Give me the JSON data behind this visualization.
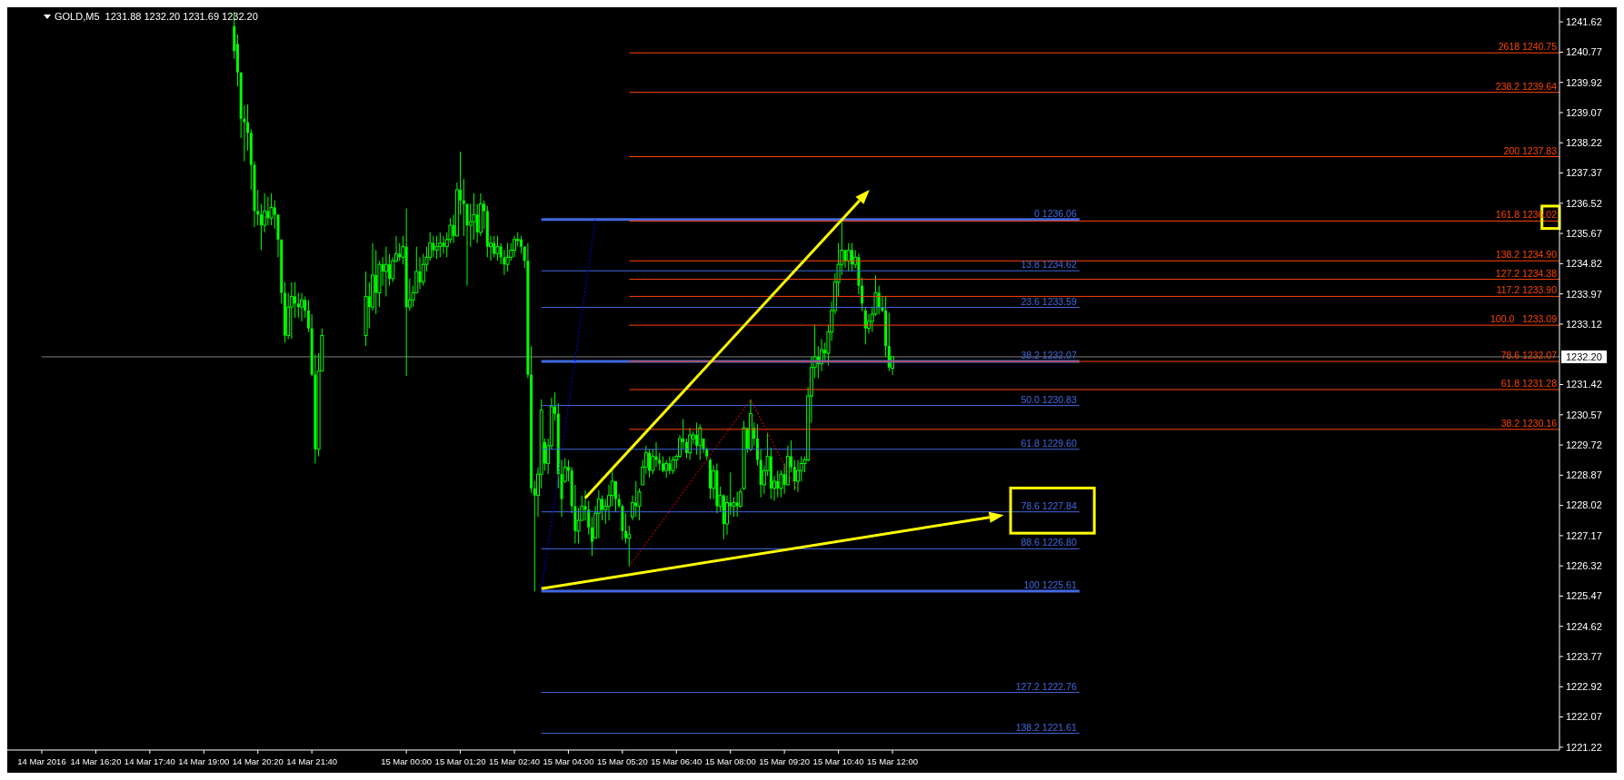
{
  "chart_data": {
    "type": "candlestick",
    "title": "GOLD,M5  1231.88 1232.20 1231.69 1232.20",
    "color": "#00ff00",
    "xlim": [
      "2016-03-14T15:00",
      "2016-03-16T04:28"
    ],
    "ylim": [
      1221.14,
      1241.93
    ],
    "xticks": [
      {
        "value": "2016-03-14T15:00",
        "label": "14 Mar 2016"
      },
      {
        "value": "2016-03-14T16:20",
        "label": "14 Mar 16:20"
      },
      {
        "value": "2016-03-14T17:40",
        "label": "14 Mar 17:40"
      },
      {
        "value": "2016-03-14T19:00",
        "label": "14 Mar 19:00"
      },
      {
        "value": "2016-03-14T20:20",
        "label": "14 Mar 20:20"
      },
      {
        "value": "2016-03-14T21:40",
        "label": "14 Mar 21:40"
      },
      {
        "value": "2016-03-15T00:00",
        "label": "15 Mar 00:00"
      },
      {
        "value": "2016-03-15T01:20",
        "label": "15 Mar 01:20"
      },
      {
        "value": "2016-03-15T02:40",
        "label": "15 Mar 02:40"
      },
      {
        "value": "2016-03-15T04:00",
        "label": "15 Mar 04:00"
      },
      {
        "value": "2016-03-15T05:20",
        "label": "15 Mar 05:20"
      },
      {
        "value": "2016-03-15T06:40",
        "label": "15 Mar 06:40"
      },
      {
        "value": "2016-03-15T08:00",
        "label": "15 Mar 08:00"
      },
      {
        "value": "2016-03-15T09:20",
        "label": "15 Mar 09:20"
      },
      {
        "value": "2016-03-15T10:40",
        "label": "15 Mar 10:40"
      },
      {
        "value": "2016-03-15T12:00",
        "label": "15 Mar 12:00"
      }
    ],
    "yticks": [
      1241.62,
      1240.77,
      1239.92,
      1239.07,
      1238.22,
      1237.37,
      1236.52,
      1235.67,
      1234.82,
      1233.97,
      1233.12,
      1231.42,
      1230.57,
      1229.72,
      1228.87,
      1228.02,
      1227.17,
      1226.32,
      1225.47,
      1224.62,
      1223.77,
      1222.92,
      1222.07,
      1221.22
    ],
    "ref_lines": [
      {
        "axis": "y",
        "value": 1232.2,
        "label": "1232.20",
        "color": "#808080"
      }
    ],
    "x": [
      "2016-03-14T19:45",
      "2016-03-14T19:50",
      "2016-03-14T19:55",
      "2016-03-14T20:00",
      "2016-03-14T20:05",
      "2016-03-14T20:10",
      "2016-03-14T20:15",
      "2016-03-14T20:20",
      "2016-03-14T20:25",
      "2016-03-14T20:30",
      "2016-03-14T20:35",
      "2016-03-14T20:40",
      "2016-03-14T20:45",
      "2016-03-14T20:50",
      "2016-03-14T20:55",
      "2016-03-14T21:00",
      "2016-03-14T21:05",
      "2016-03-14T21:10",
      "2016-03-14T21:15",
      "2016-03-14T21:20",
      "2016-03-14T21:25",
      "2016-03-14T21:30",
      "2016-03-14T21:35",
      "2016-03-14T21:40",
      "2016-03-14T21:45",
      "2016-03-14T21:50",
      "2016-03-14T21:55",
      "2016-03-14T23:00",
      "2016-03-14T23:05",
      "2016-03-14T23:10",
      "2016-03-14T23:15",
      "2016-03-14T23:20",
      "2016-03-14T23:25",
      "2016-03-14T23:30",
      "2016-03-14T23:35",
      "2016-03-14T23:40",
      "2016-03-14T23:45",
      "2016-03-14T23:50",
      "2016-03-14T23:55",
      "2016-03-15T00:00",
      "2016-03-15T00:05",
      "2016-03-15T00:10",
      "2016-03-15T00:15",
      "2016-03-15T00:20",
      "2016-03-15T00:25",
      "2016-03-15T00:30",
      "2016-03-15T00:35",
      "2016-03-15T00:40",
      "2016-03-15T00:45",
      "2016-03-15T00:50",
      "2016-03-15T00:55",
      "2016-03-15T01:00",
      "2016-03-15T01:05",
      "2016-03-15T01:10",
      "2016-03-15T01:15",
      "2016-03-15T01:20",
      "2016-03-15T01:25",
      "2016-03-15T01:30",
      "2016-03-15T01:35",
      "2016-03-15T01:40",
      "2016-03-15T01:45",
      "2016-03-15T01:50",
      "2016-03-15T01:55",
      "2016-03-15T02:00",
      "2016-03-15T02:05",
      "2016-03-15T02:10",
      "2016-03-15T02:15",
      "2016-03-15T02:20",
      "2016-03-15T02:25",
      "2016-03-15T02:30",
      "2016-03-15T02:35",
      "2016-03-15T02:40",
      "2016-03-15T02:45",
      "2016-03-15T02:50",
      "2016-03-15T02:55",
      "2016-03-15T03:00",
      "2016-03-15T03:05",
      "2016-03-15T03:10",
      "2016-03-15T03:15",
      "2016-03-15T03:20",
      "2016-03-15T03:25",
      "2016-03-15T03:30",
      "2016-03-15T03:35",
      "2016-03-15T03:40",
      "2016-03-15T03:45",
      "2016-03-15T03:50",
      "2016-03-15T03:55",
      "2016-03-15T04:00",
      "2016-03-15T04:05",
      "2016-03-15T04:10",
      "2016-03-15T04:15",
      "2016-03-15T04:20",
      "2016-03-15T04:25",
      "2016-03-15T04:30",
      "2016-03-15T04:35",
      "2016-03-15T04:40",
      "2016-03-15T04:45",
      "2016-03-15T04:50",
      "2016-03-15T04:55",
      "2016-03-15T05:00",
      "2016-03-15T05:05",
      "2016-03-15T05:10",
      "2016-03-15T05:15",
      "2016-03-15T05:20",
      "2016-03-15T05:25",
      "2016-03-15T05:30",
      "2016-03-15T05:35",
      "2016-03-15T05:40",
      "2016-03-15T05:45",
      "2016-03-15T05:50",
      "2016-03-15T05:55",
      "2016-03-15T06:00",
      "2016-03-15T06:05",
      "2016-03-15T06:10",
      "2016-03-15T06:15",
      "2016-03-15T06:20",
      "2016-03-15T06:25",
      "2016-03-15T06:30",
      "2016-03-15T06:35",
      "2016-03-15T06:40",
      "2016-03-15T06:45",
      "2016-03-15T06:50",
      "2016-03-15T06:55",
      "2016-03-15T07:00",
      "2016-03-15T07:05",
      "2016-03-15T07:10",
      "2016-03-15T07:15",
      "2016-03-15T07:20",
      "2016-03-15T07:25",
      "2016-03-15T07:30",
      "2016-03-15T07:35",
      "2016-03-15T07:40",
      "2016-03-15T07:45",
      "2016-03-15T07:50",
      "2016-03-15T07:55",
      "2016-03-15T08:00",
      "2016-03-15T08:05",
      "2016-03-15T08:10",
      "2016-03-15T08:15",
      "2016-03-15T08:20",
      "2016-03-15T08:25",
      "2016-03-15T08:30",
      "2016-03-15T08:35",
      "2016-03-15T08:40",
      "2016-03-15T08:45",
      "2016-03-15T08:50",
      "2016-03-15T08:55",
      "2016-03-15T09:00",
      "2016-03-15T09:05",
      "2016-03-15T09:10",
      "2016-03-15T09:15",
      "2016-03-15T09:20",
      "2016-03-15T09:25",
      "2016-03-15T09:30",
      "2016-03-15T09:35",
      "2016-03-15T09:40",
      "2016-03-15T09:45",
      "2016-03-15T09:50",
      "2016-03-15T09:55",
      "2016-03-15T10:00",
      "2016-03-15T10:05",
      "2016-03-15T10:10",
      "2016-03-15T10:15",
      "2016-03-15T10:20",
      "2016-03-15T10:25",
      "2016-03-15T10:30",
      "2016-03-15T10:35",
      "2016-03-15T10:40",
      "2016-03-15T10:45",
      "2016-03-15T10:50",
      "2016-03-15T10:55",
      "2016-03-15T11:00",
      "2016-03-15T11:05",
      "2016-03-15T11:10",
      "2016-03-15T11:15",
      "2016-03-15T11:20",
      "2016-03-15T11:25",
      "2016-03-15T11:30",
      "2016-03-15T11:35",
      "2016-03-15T11:40",
      "2016-03-15T11:45",
      "2016-03-15T11:50",
      "2016-03-15T11:55",
      "2016-03-15T12:00"
    ],
    "ohlc": [
      [
        1241.5,
        1241.9,
        1240.58,
        1240.8
      ],
      [
        1241.0,
        1241.27,
        1239.8,
        1240.2
      ],
      [
        1240.2,
        1240.2,
        1238.35,
        1238.9
      ],
      [
        1238.9,
        1239.27,
        1237.7,
        1238.8
      ],
      [
        1238.8,
        1239.3,
        1238.0,
        1238.5
      ],
      [
        1238.5,
        1238.6,
        1236.9,
        1237.6
      ],
      [
        1237.6,
        1237.7,
        1235.85,
        1236.3
      ],
      [
        1236.3,
        1236.9,
        1235.9,
        1236.2
      ],
      [
        1236.2,
        1236.5,
        1235.2,
        1235.9
      ],
      [
        1235.9,
        1236.8,
        1235.7,
        1236.3
      ],
      [
        1236.3,
        1236.7,
        1235.9,
        1236.1
      ],
      [
        1236.1,
        1236.8,
        1235.9,
        1236.4
      ],
      [
        1236.4,
        1236.6,
        1235.8,
        1236.2
      ],
      [
        1236.2,
        1236.2,
        1235.0,
        1235.5
      ],
      [
        1235.5,
        1235.5,
        1233.7,
        1234.0
      ],
      [
        1234.0,
        1234.3,
        1232.6,
        1232.8
      ],
      [
        1232.8,
        1234.0,
        1232.7,
        1233.6
      ],
      [
        1233.6,
        1234.3,
        1232.7,
        1233.9
      ],
      [
        1233.9,
        1234.3,
        1233.3,
        1233.7
      ],
      [
        1233.7,
        1234.0,
        1233.3,
        1233.6
      ],
      [
        1233.6,
        1234.0,
        1233.2,
        1233.8
      ],
      [
        1233.8,
        1233.9,
        1233.3,
        1233.5
      ],
      [
        1233.5,
        1233.8,
        1232.9,
        1233.0
      ],
      [
        1233.0,
        1233.4,
        1231.65,
        1231.7
      ],
      [
        1231.7,
        1232.26,
        1229.2,
        1229.6
      ],
      [
        1229.6,
        1232.3,
        1229.4,
        1231.8
      ],
      [
        1231.8,
        1233.0,
        1231.8,
        1232.8
      ],
      [
        1232.8,
        1234.6,
        1232.5,
        1233.9
      ],
      [
        1233.9,
        1234.3,
        1233.0,
        1233.6
      ],
      [
        1233.6,
        1235.4,
        1233.5,
        1234.5
      ],
      [
        1234.5,
        1235.2,
        1233.4,
        1234.0
      ],
      [
        1234.0,
        1234.9,
        1233.6,
        1234.8
      ],
      [
        1234.8,
        1235.0,
        1234.2,
        1234.6
      ],
      [
        1234.6,
        1235.3,
        1233.9,
        1234.8
      ],
      [
        1234.8,
        1235.1,
        1234.2,
        1234.4
      ],
      [
        1234.4,
        1235.0,
        1234.3,
        1234.9
      ],
      [
        1234.9,
        1235.6,
        1234.85,
        1235.1
      ],
      [
        1235.1,
        1235.4,
        1234.9,
        1235.0
      ],
      [
        1235.0,
        1235.6,
        1234.8,
        1235.3
      ],
      [
        1235.3,
        1236.37,
        1231.66,
        1233.6
      ],
      [
        1233.6,
        1234.4,
        1233.5,
        1233.8
      ],
      [
        1233.8,
        1234.2,
        1233.6,
        1234.0
      ],
      [
        1234.0,
        1235.3,
        1234.0,
        1234.6
      ],
      [
        1234.6,
        1235.0,
        1234.1,
        1234.3
      ],
      [
        1234.3,
        1235.1,
        1234.2,
        1234.8
      ],
      [
        1234.8,
        1235.3,
        1234.6,
        1235.0
      ],
      [
        1235.0,
        1235.7,
        1234.9,
        1235.4
      ],
      [
        1235.4,
        1235.6,
        1235.0,
        1235.2
      ],
      [
        1235.2,
        1235.6,
        1234.95,
        1235.3
      ],
      [
        1235.3,
        1235.7,
        1235.0,
        1235.4
      ],
      [
        1235.4,
        1235.6,
        1235.1,
        1235.3
      ],
      [
        1235.3,
        1235.7,
        1235.0,
        1235.5
      ],
      [
        1235.5,
        1236.1,
        1235.4,
        1235.9
      ],
      [
        1235.9,
        1236.2,
        1235.4,
        1235.6
      ],
      [
        1235.6,
        1237.1,
        1235.6,
        1236.9
      ],
      [
        1236.9,
        1237.97,
        1236.2,
        1236.6
      ],
      [
        1236.6,
        1237.2,
        1235.6,
        1236.5
      ],
      [
        1236.5,
        1236.5,
        1234.2,
        1235.9
      ],
      [
        1235.9,
        1236.5,
        1235.3,
        1236.0
      ],
      [
        1236.0,
        1236.8,
        1235.5,
        1236.2
      ],
      [
        1236.2,
        1236.5,
        1235.4,
        1235.7
      ],
      [
        1235.7,
        1236.8,
        1235.6,
        1236.5
      ],
      [
        1236.5,
        1236.6,
        1235.8,
        1236.3
      ],
      [
        1236.3,
        1236.45,
        1235.0,
        1235.3
      ],
      [
        1235.3,
        1235.6,
        1234.9,
        1235.4
      ],
      [
        1235.4,
        1235.6,
        1235.0,
        1235.1
      ],
      [
        1235.1,
        1235.6,
        1234.9,
        1235.3
      ],
      [
        1235.3,
        1235.4,
        1234.8,
        1235.0
      ],
      [
        1235.0,
        1235.2,
        1234.5,
        1234.8
      ],
      [
        1234.8,
        1235.4,
        1234.6,
        1235.0
      ],
      [
        1235.0,
        1235.4,
        1234.9,
        1235.2
      ],
      [
        1235.2,
        1235.6,
        1235.0,
        1235.5
      ],
      [
        1235.5,
        1235.7,
        1235.3,
        1235.5
      ],
      [
        1235.5,
        1235.6,
        1235.1,
        1235.3
      ],
      [
        1235.3,
        1235.3,
        1234.7,
        1234.9
      ],
      [
        1234.9,
        1235.4,
        1231.6,
        1231.7
      ],
      [
        1231.7,
        1232.5,
        1228.37,
        1228.5
      ],
      [
        1228.5,
        1228.7,
        1225.6,
        1228.3
      ],
      [
        1228.3,
        1229.09,
        1227.7,
        1228.9
      ],
      [
        1228.9,
        1231.0,
        1228.5,
        1230.7
      ],
      [
        1229.8,
        1229.9,
        1229.0,
        1229.2
      ],
      [
        1229.2,
        1229.9,
        1228.9,
        1229.7
      ],
      [
        1229.7,
        1231.05,
        1229.6,
        1230.8
      ],
      [
        1230.8,
        1231.2,
        1230.4,
        1230.6
      ],
      [
        1230.6,
        1230.9,
        1228.5,
        1228.9
      ],
      [
        1228.9,
        1229.3,
        1227.7,
        1228.2
      ],
      [
        1228.7,
        1229.35,
        1228.65,
        1229.1
      ],
      [
        1229.1,
        1229.3,
        1228.7,
        1229.0
      ],
      [
        1229.0,
        1229.1,
        1227.8,
        1228.0
      ],
      [
        1228.0,
        1228.6,
        1226.95,
        1227.3
      ],
      [
        1227.3,
        1227.95,
        1226.95,
        1227.6
      ],
      [
        1227.6,
        1228.3,
        1227.6,
        1228.0
      ],
      [
        1228.0,
        1228.45,
        1227.6,
        1227.9
      ],
      [
        1227.9,
        1228.15,
        1227.2,
        1227.4
      ],
      [
        1227.4,
        1227.7,
        1226.6,
        1227.0
      ],
      [
        1227.1,
        1228.0,
        1227.1,
        1227.8
      ],
      [
        1227.8,
        1228.45,
        1227.1,
        1228.2
      ],
      [
        1228.2,
        1228.3,
        1227.6,
        1227.9
      ],
      [
        1227.9,
        1228.2,
        1227.5,
        1228.0
      ],
      [
        1228.0,
        1228.6,
        1227.6,
        1228.3
      ],
      [
        1228.3,
        1229.0,
        1228.0,
        1228.7
      ],
      [
        1228.7,
        1228.7,
        1227.85,
        1228.2
      ],
      [
        1228.2,
        1228.35,
        1227.95,
        1228.0
      ],
      [
        1228.0,
        1228.05,
        1227.05,
        1227.3
      ],
      [
        1227.3,
        1227.8,
        1226.95,
        1227.1
      ],
      [
        1227.1,
        1227.45,
        1226.3,
        1227.2
      ],
      [
        1227.7,
        1228.3,
        1227.6,
        1228.1
      ],
      [
        1228.1,
        1228.7,
        1227.7,
        1228.0
      ],
      [
        1228.0,
        1228.5,
        1227.6,
        1228.4
      ],
      [
        1228.6,
        1229.3,
        1228.6,
        1229.1
      ],
      [
        1229.1,
        1229.7,
        1228.9,
        1229.5
      ],
      [
        1229.5,
        1229.6,
        1228.8,
        1229.0
      ],
      [
        1229.0,
        1229.6,
        1228.9,
        1229.4
      ],
      [
        1229.4,
        1229.8,
        1229.1,
        1229.3
      ],
      [
        1229.3,
        1229.5,
        1229.0,
        1229.2
      ],
      [
        1229.2,
        1229.4,
        1228.95,
        1229.0
      ],
      [
        1229.0,
        1229.3,
        1228.8,
        1229.2
      ],
      [
        1229.2,
        1229.4,
        1228.9,
        1229.0
      ],
      [
        1229.0,
        1229.4,
        1228.9,
        1229.3
      ],
      [
        1229.3,
        1229.45,
        1229.05,
        1229.4
      ],
      [
        1229.4,
        1230.0,
        1229.35,
        1229.9
      ],
      [
        1229.9,
        1230.45,
        1229.6,
        1229.8
      ],
      [
        1229.8,
        1229.9,
        1229.35,
        1229.5
      ],
      [
        1229.5,
        1230.2,
        1229.3,
        1230.0
      ],
      [
        1229.9,
        1230.1,
        1229.75,
        1230.0
      ],
      [
        1230.0,
        1230.35,
        1229.45,
        1229.7
      ],
      [
        1229.7,
        1230.3,
        1229.3,
        1230.2
      ],
      [
        1229.9,
        1229.9,
        1229.5,
        1229.6
      ],
      [
        1229.6,
        1229.65,
        1229.3,
        1229.4
      ],
      [
        1229.3,
        1229.35,
        1228.2,
        1228.5
      ],
      [
        1228.5,
        1229.15,
        1228.2,
        1229.0
      ],
      [
        1229.0,
        1229.2,
        1227.8,
        1228.0
      ],
      [
        1228.0,
        1228.55,
        1227.85,
        1228.3
      ],
      [
        1228.3,
        1228.33,
        1227.07,
        1227.5
      ],
      [
        1227.5,
        1228.3,
        1227.2,
        1228.1
      ],
      [
        1228.1,
        1228.95,
        1227.75,
        1228.0
      ],
      [
        1228.0,
        1228.25,
        1227.7,
        1228.1
      ],
      [
        1228.1,
        1228.4,
        1227.7,
        1228.0
      ],
      [
        1228.0,
        1228.5,
        1227.95,
        1228.4
      ],
      [
        1228.5,
        1230.4,
        1228.45,
        1230.2
      ],
      [
        1230.2,
        1230.2,
        1229.5,
        1229.6
      ],
      [
        1229.6,
        1231.0,
        1229.55,
        1230.6
      ],
      [
        1230.2,
        1230.35,
        1229.7,
        1229.9
      ],
      [
        1229.9,
        1230.3,
        1229.15,
        1229.3
      ],
      [
        1229.3,
        1229.6,
        1228.25,
        1228.6
      ],
      [
        1228.6,
        1229.15,
        1228.35,
        1229.0
      ],
      [
        1229.0,
        1230.05,
        1228.85,
        1229.4
      ],
      [
        1229.4,
        1229.65,
        1228.2,
        1228.5
      ],
      [
        1228.5,
        1228.85,
        1228.15,
        1228.7
      ],
      [
        1228.7,
        1229.0,
        1228.25,
        1228.5
      ],
      [
        1228.5,
        1229.0,
        1228.25,
        1228.9
      ],
      [
        1228.9,
        1229.2,
        1228.35,
        1228.6
      ],
      [
        1228.6,
        1229.7,
        1228.6,
        1229.4
      ],
      [
        1229.4,
        1229.85,
        1228.95,
        1229.1
      ],
      [
        1229.1,
        1229.3,
        1228.45,
        1228.7
      ],
      [
        1228.7,
        1229.3,
        1228.4,
        1229.0
      ],
      [
        1229.0,
        1229.4,
        1228.7,
        1229.2
      ],
      [
        1229.2,
        1229.4,
        1228.95,
        1229.3
      ],
      [
        1229.3,
        1231.35,
        1229.25,
        1231.1
      ],
      [
        1231.1,
        1232.2,
        1230.35,
        1231.9
      ],
      [
        1231.9,
        1233.1,
        1231.6,
        1232.2
      ],
      [
        1232.2,
        1232.5,
        1231.6,
        1232.0
      ],
      [
        1232.0,
        1232.7,
        1231.8,
        1232.4
      ],
      [
        1232.4,
        1232.6,
        1232.1,
        1232.3
      ],
      [
        1232.3,
        1233.1,
        1231.95,
        1232.9
      ],
      [
        1232.9,
        1233.75,
        1232.65,
        1233.5
      ],
      [
        1233.5,
        1234.55,
        1233.4,
        1234.3
      ],
      [
        1234.3,
        1235.4,
        1233.9,
        1234.8
      ],
      [
        1234.8,
        1236.0,
        1234.5,
        1235.2
      ],
      [
        1235.2,
        1235.2,
        1234.7,
        1234.9
      ],
      [
        1234.9,
        1235.4,
        1234.6,
        1235.2
      ],
      [
        1235.2,
        1235.4,
        1234.6,
        1234.8
      ],
      [
        1234.8,
        1235.2,
        1234.7,
        1235.0
      ],
      [
        1235.0,
        1235.1,
        1233.96,
        1234.2
      ],
      [
        1234.2,
        1234.43,
        1233.48,
        1233.7
      ],
      [
        1233.5,
        1233.6,
        1232.55,
        1233.0
      ],
      [
        1233.0,
        1233.4,
        1232.85,
        1233.2
      ],
      [
        1233.2,
        1233.6,
        1232.9,
        1233.4
      ],
      [
        1233.4,
        1234.5,
        1233.35,
        1234.0
      ],
      [
        1234.0,
        1234.2,
        1233.4,
        1233.6
      ],
      [
        1233.6,
        1233.9,
        1233.45,
        1233.5
      ],
      [
        1233.5,
        1233.9,
        1232.2,
        1232.5
      ],
      [
        1232.5,
        1233.43,
        1231.8,
        1231.9
      ],
      [
        1231.88,
        1232.2,
        1231.69,
        1232.2
      ]
    ],
    "series": [
      {
        "type": "line",
        "color": "#4169e1",
        "x": [
          "2016-03-15T03:20",
          "2016-03-15T16:37"
        ],
        "values": [
          1236.06,
          1236.06
        ]
      },
      {
        "type": "line",
        "color": "#4169e1",
        "x": [
          "2016-03-15T03:20",
          "2016-03-15T16:37"
        ],
        "values": [
          1234.62,
          1234.62
        ]
      },
      {
        "type": "line",
        "color": "#4169e1",
        "x": [
          "2016-03-15T03:20",
          "2016-03-15T16:37"
        ],
        "values": [
          1233.59,
          1233.59
        ]
      },
      {
        "type": "line",
        "color": "#4169e1",
        "x": [
          "2016-03-15T03:20",
          "2016-03-15T16:37"
        ],
        "values": [
          1232.07,
          1232.07
        ]
      },
      {
        "type": "line",
        "color": "#4169e1",
        "x": [
          "2016-03-15T03:20",
          "2016-03-15T16:37"
        ],
        "values": [
          1230.83,
          1230.83
        ]
      },
      {
        "type": "line",
        "color": "#4169e1",
        "x": [
          "2016-03-15T03:20",
          "2016-03-15T16:37"
        ],
        "values": [
          1229.6,
          1229.6
        ]
      },
      {
        "type": "line",
        "color": "#4169e1",
        "x": [
          "2016-03-15T03:20",
          "2016-03-15T16:37"
        ],
        "values": [
          1227.84,
          1227.84
        ]
      },
      {
        "type": "line",
        "color": "#4169e1",
        "x": [
          "2016-03-15T03:20",
          "2016-03-15T16:37"
        ],
        "values": [
          1226.8,
          1226.8
        ]
      },
      {
        "type": "line",
        "color": "#4169e1",
        "x": [
          "2016-03-15T03:20",
          "2016-03-15T16:37"
        ],
        "values": [
          1225.61,
          1225.61
        ]
      },
      {
        "type": "line",
        "color": "#4169e1",
        "x": [
          "2016-03-15T03:20",
          "2016-03-15T16:37"
        ],
        "values": [
          1222.76,
          1222.76
        ]
      },
      {
        "type": "line",
        "color": "#4169e1",
        "x": [
          "2016-03-15T03:20",
          "2016-03-15T16:37"
        ],
        "values": [
          1221.61,
          1221.61
        ]
      },
      {
        "type": "line",
        "color": "#ff4500",
        "x": [
          "2016-03-15T05:30",
          "2016-03-16T04:28"
        ],
        "values": [
          1240.75,
          1240.75
        ]
      },
      {
        "type": "line",
        "color": "#ff4500",
        "x": [
          "2016-03-15T05:30",
          "2016-03-16T04:28"
        ],
        "values": [
          1239.64,
          1239.64
        ]
      },
      {
        "type": "line",
        "color": "#ff4500",
        "x": [
          "2016-03-15T05:30",
          "2016-03-16T04:28"
        ],
        "values": [
          1237.83,
          1237.83
        ]
      },
      {
        "type": "line",
        "color": "#ff4500",
        "x": [
          "2016-03-15T05:30",
          "2016-03-16T04:28"
        ],
        "values": [
          1236.02,
          1236.02
        ]
      },
      {
        "type": "line",
        "color": "#ff4500",
        "x": [
          "2016-03-15T05:30",
          "2016-03-16T04:28"
        ],
        "values": [
          1234.9,
          1234.9
        ]
      },
      {
        "type": "line",
        "color": "#ff4500",
        "x": [
          "2016-03-15T05:30",
          "2016-03-16T04:28"
        ],
        "values": [
          1234.38,
          1234.38
        ]
      },
      {
        "type": "line",
        "color": "#ff4500",
        "x": [
          "2016-03-15T05:30",
          "2016-03-16T04:28"
        ],
        "values": [
          1233.9,
          1233.9
        ]
      },
      {
        "type": "line",
        "color": "#ff4500",
        "x": [
          "2016-03-15T05:30",
          "2016-03-16T04:28"
        ],
        "values": [
          1233.09,
          1233.09
        ]
      },
      {
        "type": "line",
        "color": "#ff4500",
        "x": [
          "2016-03-15T05:30",
          "2016-03-16T04:28"
        ],
        "values": [
          1232.07,
          1232.07
        ]
      },
      {
        "type": "line",
        "color": "#ff4500",
        "x": [
          "2016-03-15T05:30",
          "2016-03-16T04:28"
        ],
        "values": [
          1231.28,
          1231.28
        ]
      },
      {
        "type": "line",
        "color": "#ff4500",
        "x": [
          "2016-03-15T05:30",
          "2016-03-16T04:28"
        ],
        "values": [
          1230.16,
          1230.16
        ]
      },
      {
        "type": "line",
        "color": "#0000ff",
        "line_style": "dotted",
        "x": [
          "2016-03-15T03:20",
          "2016-03-15T04:40"
        ],
        "values": [
          1225.61,
          1236.06
        ]
      },
      {
        "type": "line",
        "color": "#ff0000",
        "line_style": "dotted",
        "x": [
          "2016-03-15T05:30",
          "2016-03-15T08:30",
          "2016-03-15T09:40"
        ],
        "values": [
          1226.3,
          1231.0,
          1228.41
        ]
      }
    ],
    "annotations": [
      {
        "text": "0 1236.06",
        "x": "2016-03-15T16:37",
        "y": 1236.06
      },
      {
        "text": "13.8 1234.62",
        "x": "2016-03-15T16:37",
        "y": 1234.62
      },
      {
        "text": "23.6 1233.59",
        "x": "2016-03-15T16:37",
        "y": 1233.59
      },
      {
        "text": "38.2 1232.07",
        "x": "2016-03-15T16:37",
        "y": 1232.07
      },
      {
        "text": "50.0 1230.83",
        "x": "2016-03-15T16:37",
        "y": 1230.83
      },
      {
        "text": "61.8 1229.60",
        "x": "2016-03-15T16:37",
        "y": 1229.6
      },
      {
        "text": "78.6 1227.84",
        "x": "2016-03-15T16:37",
        "y": 1227.84
      },
      {
        "text": "88.6 1226.80",
        "x": "2016-03-15T16:37",
        "y": 1226.8
      },
      {
        "text": "100 1225.61",
        "x": "2016-03-15T16:37",
        "y": 1225.61
      },
      {
        "text": "127.2 1222.76",
        "x": "2016-03-15T16:37",
        "y": 1222.76
      },
      {
        "text": "138.2 1221.61",
        "x": "2016-03-15T16:37",
        "y": 1221.61
      },
      {
        "text": "2618 1240.75",
        "x": "2016-03-16T04:28",
        "y": 1240.75
      },
      {
        "text": "238.2 1239.64",
        "x": "2016-03-16T04:28",
        "y": 1239.64
      },
      {
        "text": "200 1237.83",
        "x": "2016-03-16T04:28",
        "y": 1237.83
      },
      {
        "text": "161.8 1236.02",
        "x": "2016-03-16T04:28",
        "y": 1236.02
      },
      {
        "text": "138.2 1234.90",
        "x": "2016-03-16T04:28",
        "y": 1234.9
      },
      {
        "text": "127.2 1234.38",
        "x": "2016-03-16T04:28",
        "y": 1234.38
      },
      {
        "text": "117.2 1233.90",
        "x": "2016-03-16T04:28",
        "y": 1233.9
      },
      {
        "text": "100.0   1233.09",
        "x": "2016-03-16T04:28",
        "y": 1233.09
      },
      {
        "text": "78.6 1232.07",
        "x": "2016-03-16T04:28",
        "y": 1232.07
      },
      {
        "text": "61.8 1231.28",
        "x": "2016-03-16T04:28",
        "y": 1231.28
      },
      {
        "text": "38.2 1230.16",
        "x": "2016-03-16T04:28",
        "y": 1230.16
      }
    ]
  }
}
